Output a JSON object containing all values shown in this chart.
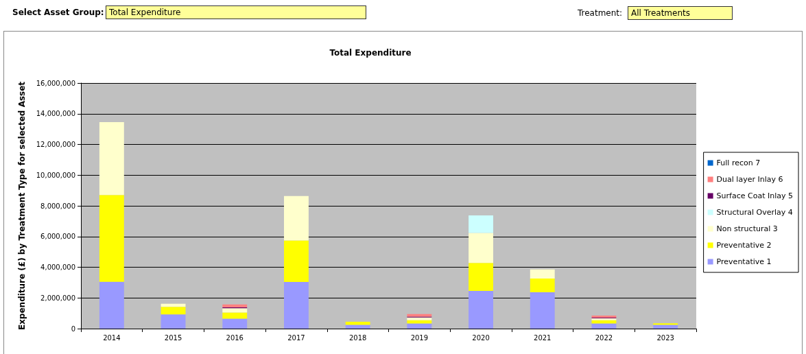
{
  "chart_data": {
    "type": "bar",
    "title": "Total Expenditure",
    "ylabel": "Expenditure (£) by Treatment Type for selected Asset",
    "annotations": [
      "Select Asset Group:",
      "Total Expenditure",
      "Treatment:",
      "All Treatments"
    ],
    "categories": [
      "2014",
      "2015",
      "2016",
      "2017",
      "2018",
      "2019",
      "2020",
      "2021",
      "2022",
      "2023"
    ],
    "stacked": true,
    "series": [
      {
        "name": "Preventative 1",
        "color": "#9999ff",
        "values": [
          3050000,
          930000,
          650000,
          3040000,
          250000,
          330000,
          2460000,
          2370000,
          330000,
          250000
        ]
      },
      {
        "name": "Preventative 2",
        "color": "#ffff00",
        "values": [
          5650000,
          490000,
          400000,
          2700000,
          200000,
          220000,
          1820000,
          890000,
          220000,
          100000
        ]
      },
      {
        "name": "Non structural 3",
        "color": "#ffffcc",
        "values": [
          4750000,
          200000,
          280000,
          2900000,
          null,
          180000,
          1950000,
          600000,
          120000,
          null
        ]
      },
      {
        "name": "Structural Overlay 4",
        "color": "#ccffff",
        "values": [
          0,
          0,
          0,
          0,
          0,
          0,
          1140000,
          0,
          0,
          0
        ]
      },
      {
        "name": "Surface Coat Inlay 5",
        "color": "#660066",
        "values": [
          0,
          0,
          50000,
          0,
          0,
          50000,
          0,
          0,
          40000,
          0
        ]
      },
      {
        "name": "Dual layer Inlay 6",
        "color": "#ff8080",
        "values": [
          0,
          0,
          200000,
          0,
          0,
          170000,
          0,
          0,
          140000,
          0
        ]
      },
      {
        "name": "Full recon 7",
        "color": "#0066cc",
        "values": [
          0,
          0,
          0,
          0,
          0,
          0,
          0,
          0,
          0,
          0
        ]
      }
    ],
    "ylim": [
      0,
      16000000
    ],
    "yticks": [
      {
        "value": 0,
        "label": "0"
      },
      {
        "value": 2000000,
        "label": "2,000,000"
      },
      {
        "value": 4000000,
        "label": "4,000,000"
      },
      {
        "value": 6000000,
        "label": "6,000,000"
      },
      {
        "value": 8000000,
        "label": "8,000,000"
      },
      {
        "value": 10000000,
        "label": "10,000,000"
      },
      {
        "value": 12000000,
        "label": "12,000,000"
      },
      {
        "value": 14000000,
        "label": "14,000,000"
      },
      {
        "value": 16000000,
        "label": "16,000,000"
      }
    ],
    "grid": "y",
    "legend": "right"
  }
}
